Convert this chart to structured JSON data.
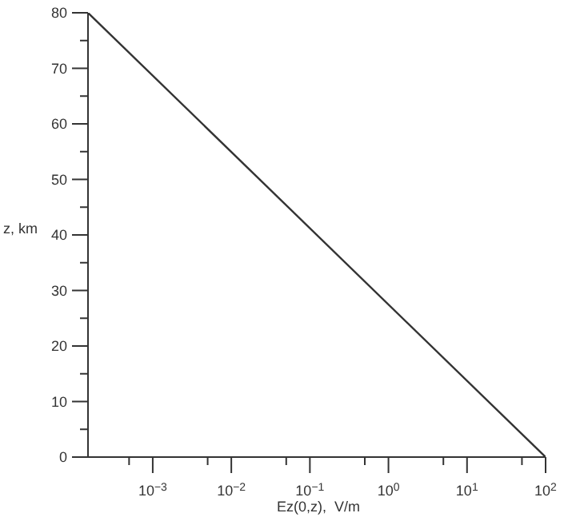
{
  "chart_data": {
    "type": "line",
    "xlabel": "Ez(0,z),  V/m",
    "ylabel": "z, km",
    "log": "x",
    "x": [
      0.00015,
      100
    ],
    "series": [
      {
        "color": "#333333",
        "values": [
          80,
          0
        ]
      }
    ],
    "xlim": [
      0.00015,
      100
    ],
    "xticks": [
      {
        "value": 0.0005,
        "label": null
      },
      {
        "value": 0.001,
        "label": "10$^{−3}$"
      },
      {
        "value": 0.005,
        "label": null
      },
      {
        "value": 0.01,
        "label": "10$^{−2}$"
      },
      {
        "value": 0.05,
        "label": null
      },
      {
        "value": 0.1,
        "label": "10$^{−1}$"
      },
      {
        "value": 0.5,
        "label": null
      },
      {
        "value": 1,
        "label": "10$^{0}$"
      },
      {
        "value": 5,
        "label": null
      },
      {
        "value": 10,
        "label": "10$^{1}$"
      },
      {
        "value": 50,
        "label": null
      },
      {
        "value": 100,
        "label": "10$^{2}$"
      }
    ],
    "ylim": [
      0,
      80
    ],
    "yticks": [
      0,
      {
        "value": 5,
        "label": null
      },
      10,
      {
        "value": 15,
        "label": null
      },
      20,
      {
        "value": 25,
        "label": null
      },
      30,
      {
        "value": 35,
        "label": null
      },
      40,
      {
        "value": 45,
        "label": null
      },
      50,
      {
        "value": 55,
        "label": null
      },
      60,
      {
        "value": 65,
        "label": null
      },
      70,
      {
        "value": 75,
        "label": null
      },
      80
    ],
    "grid": false,
    "legend": false,
    "marker": "none",
    "line_style": "solid"
  }
}
